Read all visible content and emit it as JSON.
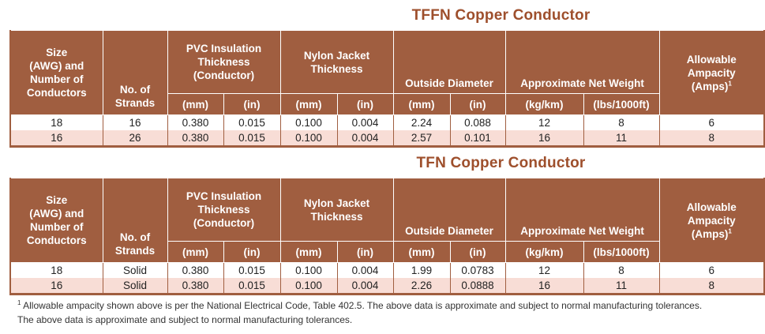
{
  "tables": [
    {
      "title": "TFFN Copper Conductor",
      "headers": {
        "size": [
          "Size",
          "(AWG) and",
          "Number of",
          "Conductors"
        ],
        "strands": [
          "No. of",
          "Strands"
        ],
        "pvc": [
          "PVC Insulation",
          "Thickness",
          "(Conductor)"
        ],
        "nylon": [
          "Nylon Jacket",
          "Thickness"
        ],
        "od": "Outside Diameter",
        "weight": "Approximate Net Weight",
        "ampacity": [
          "Allowable",
          "Ampacity",
          "(Amps)"
        ],
        "ampacity_sup": "1",
        "units": [
          "(mm)",
          "(in)",
          "(mm)",
          "(in)",
          "(mm)",
          "(in)",
          "(kg/km)",
          "(lbs/1000ft)"
        ]
      },
      "rows": [
        [
          "18",
          "16",
          "0.380",
          "0.015",
          "0.100",
          "0.004",
          "2.24",
          "0.088",
          "12",
          "8",
          "6"
        ],
        [
          "16",
          "26",
          "0.380",
          "0.015",
          "0.100",
          "0.004",
          "2.57",
          "0.101",
          "16",
          "11",
          "8"
        ]
      ]
    },
    {
      "title": "TFN Copper Conductor",
      "headers": {
        "size": [
          "Size",
          "(AWG) and",
          "Number of",
          "Conductors"
        ],
        "strands": [
          "No. of",
          "Strands"
        ],
        "pvc": [
          "PVC Insulation",
          "Thickness",
          "(Conductor)"
        ],
        "nylon": [
          "Nylon Jacket",
          "Thickness"
        ],
        "od": "Outside Diameter",
        "weight": "Approximate Net Weight",
        "ampacity": [
          "Allowable",
          "Ampacity",
          "(Amps)"
        ],
        "ampacity_sup": "1",
        "units": [
          "(mm)",
          "(in)",
          "(mm)",
          "(in)",
          "(mm)",
          "(in)",
          "(kg/km)",
          "(lbs/1000ft)"
        ]
      },
      "rows": [
        [
          "18",
          "Solid",
          "0.380",
          "0.015",
          "0.100",
          "0.004",
          "1.99",
          "0.0783",
          "12",
          "8",
          "6"
        ],
        [
          "16",
          "Solid",
          "0.380",
          "0.015",
          "0.100",
          "0.004",
          "2.26",
          "0.0888",
          "16",
          "11",
          "8"
        ]
      ]
    }
  ],
  "footnotes": {
    "sup": "1",
    "line1": " Allowable ampacity shown above is per the National Electrical Code, Table 402.5. The above data is approximate and subject to normal manufacturing tolerances.",
    "line2": "The above data is approximate and subject to normal manufacturing tolerances."
  },
  "colors": {
    "header_bg": "#a05e40",
    "title": "#9e4f2c",
    "stripe": "#f8ddd6"
  }
}
